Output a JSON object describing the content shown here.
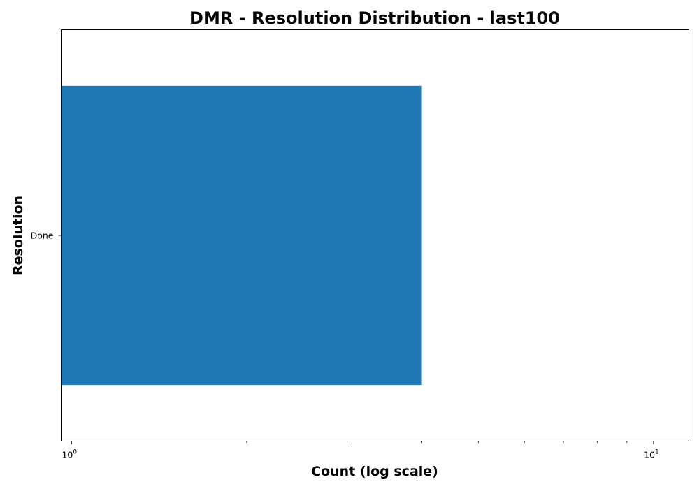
{
  "chart_data": {
    "type": "bar",
    "orientation": "horizontal",
    "title": "DMR - Resolution Distribution - last100",
    "xlabel": "Count (log scale)",
    "ylabel": "Resolution",
    "x_scale": "log",
    "xlim": [
      0.96,
      11.5
    ],
    "x_major_ticks": [
      {
        "value": 1,
        "base": "10",
        "exp": "0"
      },
      {
        "value": 10,
        "base": "10",
        "exp": "1"
      }
    ],
    "x_minor_ticks": [
      2,
      3,
      4,
      5,
      6,
      7,
      8,
      9
    ],
    "categories": [
      "Done"
    ],
    "values": [
      4
    ],
    "bar_color": "#1f77b4",
    "grid": false,
    "legend": "none"
  }
}
